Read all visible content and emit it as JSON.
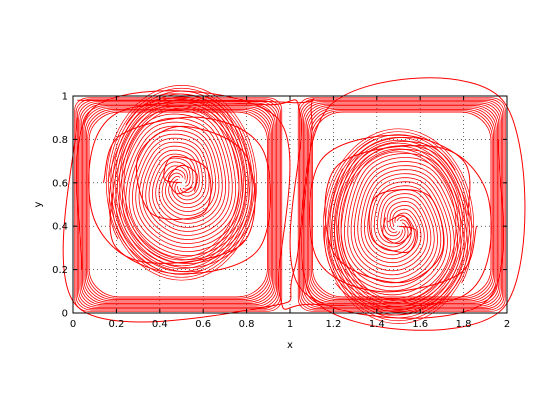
{
  "chart_data": {
    "type": "line",
    "title": "",
    "xlabel": "x",
    "ylabel": "y",
    "xlim": [
      0,
      2
    ],
    "ylim": [
      0,
      1
    ],
    "xticks": [
      0,
      0.2,
      0.4,
      0.6,
      0.8,
      1,
      1.2,
      1.4,
      1.6,
      1.8,
      2
    ],
    "xtick_labels": [
      "0",
      "0.2",
      "0.4",
      "0.6",
      "0.8",
      "1",
      "1.2",
      "1.4",
      "1.6",
      "1.8",
      "2"
    ],
    "yticks": [
      0,
      0.2,
      0.4,
      0.6,
      0.8,
      1
    ],
    "ytick_labels": [
      "0",
      "0.2",
      "0.4",
      "0.6",
      "0.8",
      "1"
    ],
    "grid": true,
    "grid_style": "dotted",
    "line_color": "#ff0000",
    "vortices": [
      {
        "center": [
          0.5,
          0.6
        ],
        "rotation": "counterclockwise"
      },
      {
        "center": [
          1.5,
          0.4
        ],
        "rotation": "clockwise"
      }
    ],
    "series": [
      {
        "values": [
          [
            0.5,
            0.6
          ],
          [
            0.42,
            0.62
          ],
          [
            0.46,
            0.72
          ],
          [
            0.62,
            0.66
          ],
          [
            0.6,
            0.46
          ],
          [
            0.36,
            0.46
          ],
          [
            0.3,
            0.72
          ],
          [
            0.5,
            0.86
          ],
          [
            0.8,
            0.72
          ],
          [
            0.78,
            0.32
          ],
          [
            0.3,
            0.24
          ],
          [
            0.08,
            0.5
          ],
          [
            0.2,
            0.92
          ],
          [
            0.9,
            0.96
          ],
          [
            1.05,
            0.9
          ],
          [
            1.06,
            0.1
          ],
          [
            1.9,
            0.05
          ],
          [
            1.96,
            0.8
          ]
        ]
      },
      {
        "values": [
          [
            1.5,
            0.4
          ],
          [
            1.58,
            0.38
          ],
          [
            1.54,
            0.28
          ],
          [
            1.38,
            0.34
          ],
          [
            1.4,
            0.54
          ],
          [
            1.64,
            0.54
          ],
          [
            1.7,
            0.28
          ],
          [
            1.5,
            0.14
          ],
          [
            1.2,
            0.28
          ],
          [
            1.22,
            0.68
          ],
          [
            1.7,
            0.76
          ],
          [
            1.92,
            0.5
          ],
          [
            1.8,
            0.08
          ],
          [
            1.1,
            0.04
          ],
          [
            0.95,
            0.1
          ],
          [
            0.94,
            0.9
          ],
          [
            0.1,
            0.95
          ],
          [
            0.04,
            0.2
          ]
        ]
      },
      {
        "values": [
          [
            0.02,
            0.98
          ],
          [
            1.0,
            0.97
          ],
          [
            1.1,
            0.9
          ],
          [
            1.12,
            0.05
          ],
          [
            1.98,
            0.02
          ],
          [
            1.98,
            0.98
          ],
          [
            1.2,
            0.97
          ],
          [
            1.02,
            0.2
          ],
          [
            0.9,
            0.03
          ],
          [
            0.02,
            0.03
          ],
          [
            0.02,
            0.9
          ]
        ]
      },
      {
        "values": [
          [
            0.18,
            0.55
          ],
          [
            0.2,
            0.3
          ],
          [
            0.5,
            0.18
          ],
          [
            0.86,
            0.3
          ],
          [
            0.88,
            0.74
          ],
          [
            0.6,
            0.9
          ],
          [
            0.22,
            0.82
          ],
          [
            0.14,
            0.6
          ]
        ]
      },
      {
        "values": [
          [
            1.82,
            0.45
          ],
          [
            1.8,
            0.7
          ],
          [
            1.5,
            0.82
          ],
          [
            1.14,
            0.7
          ],
          [
            1.12,
            0.26
          ],
          [
            1.4,
            0.1
          ],
          [
            1.78,
            0.18
          ],
          [
            1.86,
            0.4
          ]
        ]
      },
      {
        "values": [
          [
            0.55,
            0.58
          ],
          [
            0.48,
            0.55
          ],
          [
            0.44,
            0.62
          ],
          [
            0.5,
            0.68
          ],
          [
            0.57,
            0.64
          ],
          [
            0.56,
            0.56
          ]
        ]
      },
      {
        "values": [
          [
            1.45,
            0.42
          ],
          [
            1.52,
            0.45
          ],
          [
            1.56,
            0.38
          ],
          [
            1.5,
            0.32
          ],
          [
            1.43,
            0.36
          ],
          [
            1.44,
            0.44
          ]
        ]
      }
    ]
  }
}
